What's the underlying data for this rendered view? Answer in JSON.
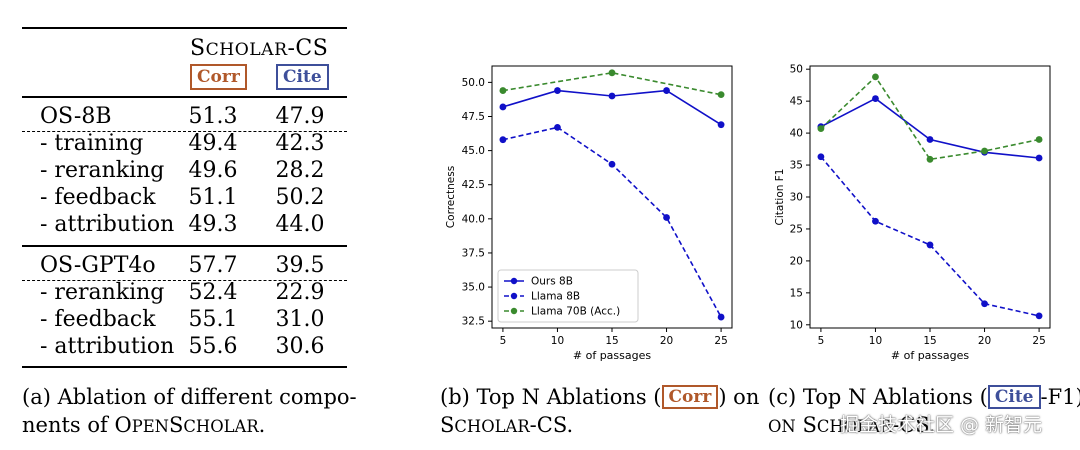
{
  "table": {
    "header": "Scholar-CS",
    "badges": [
      "Corr",
      "Cite"
    ],
    "rows": [
      {
        "label": "OS-8B",
        "corr": "51.3",
        "cite": "47.9"
      },
      {
        "label": "- training",
        "corr": "49.4",
        "cite": "42.3"
      },
      {
        "label": "- reranking",
        "corr": "49.6",
        "cite": "28.2"
      },
      {
        "label": "- feedback",
        "corr": "51.1",
        "cite": "50.2"
      },
      {
        "label": "- attribution",
        "corr": "49.3",
        "cite": "44.0"
      },
      {
        "label": "OS-GPT4o",
        "corr": "57.7",
        "cite": "39.5"
      },
      {
        "label": "- reranking",
        "corr": "52.4",
        "cite": "22.9"
      },
      {
        "label": "- feedback",
        "corr": "55.1",
        "cite": "31.0"
      },
      {
        "label": "- attribution",
        "corr": "55.6",
        "cite": "30.6"
      }
    ]
  },
  "captions": {
    "a_line1": "(a) Ablation of different compo-",
    "a_line2_pre": "nents of ",
    "a_line2_sc": "OpenScholar",
    "a_line2_post": ".",
    "b_line1_pre": "(b) Top N Ablations (",
    "b_badge": "Corr",
    "b_line1_post": ") on",
    "b_line2": "Scholar-CS.",
    "c_line1_pre": "(c) Top N Ablations (",
    "c_badge": "Cite",
    "c_line1_post": "-F1)",
    "c_line2": "on Scholar-CS."
  },
  "watermark": "掘金技术社区 @ 新智元",
  "colors": {
    "corr": "#b0582a",
    "cite": "#3e4f9a",
    "ours": "#1010c8",
    "llama8b": "#1010c8",
    "llama70b": "#3a8a2e"
  },
  "chart_data": [
    {
      "type": "line",
      "title": "",
      "xlabel": "# of passages",
      "ylabel": "Correctness",
      "x": [
        5,
        10,
        15,
        20,
        25
      ],
      "xticks": [
        "5",
        "10",
        "15",
        "20",
        "25"
      ],
      "yticks": [
        "32.5",
        "35.0",
        "37.5",
        "40.0",
        "42.5",
        "45.0",
        "47.5",
        "50.0"
      ],
      "xlim": [
        4.0,
        26.0
      ],
      "ylim": [
        32.0,
        51.2
      ],
      "legend": "bottom-left",
      "series": [
        {
          "name": "Ours 8B",
          "values": [
            48.2,
            49.4,
            49.0,
            49.4,
            46.9
          ],
          "style": "solid",
          "color": "#1010c8"
        },
        {
          "name": "Llama 8B",
          "values": [
            45.8,
            46.7,
            44.0,
            40.1,
            32.8
          ],
          "style": "dashed",
          "color": "#1010c8"
        },
        {
          "name": "Llama 70B (Acc.)",
          "values": [
            49.4,
            null,
            50.7,
            null,
            49.1
          ],
          "style": "dashed",
          "color": "#3a8a2e"
        }
      ]
    },
    {
      "type": "line",
      "title": "",
      "xlabel": "# of passages",
      "ylabel": "Citation F1",
      "x": [
        5,
        10,
        15,
        20,
        25
      ],
      "xticks": [
        "5",
        "10",
        "15",
        "20",
        "25"
      ],
      "yticks": [
        "10",
        "15",
        "20",
        "25",
        "30",
        "35",
        "40",
        "45",
        "50"
      ],
      "xlim": [
        4.0,
        26.0
      ],
      "ylim": [
        9.5,
        50.5
      ],
      "legend": "none",
      "series": [
        {
          "name": "Ours 8B",
          "values": [
            41.0,
            45.4,
            39.0,
            37.0,
            36.1
          ],
          "style": "solid",
          "color": "#1010c8"
        },
        {
          "name": "Llama 8B",
          "values": [
            36.3,
            26.2,
            22.5,
            13.3,
            11.4
          ],
          "style": "dashed",
          "color": "#1010c8"
        },
        {
          "name": "Llama 70B (Acc.)",
          "values": [
            40.7,
            48.8,
            35.9,
            37.2,
            39.0
          ],
          "style": "dashed",
          "color": "#3a8a2e"
        }
      ]
    }
  ]
}
